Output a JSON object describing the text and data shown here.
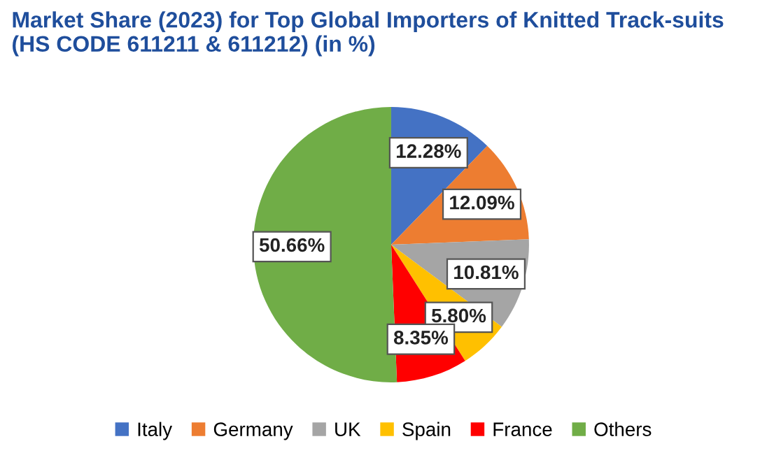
{
  "chart_data": {
    "type": "pie",
    "title": "Market Share (2023) for Top Global Importers of Knitted Track-suits\n(HS CODE 611211 & 611212) (in %)",
    "categories": [
      "Italy",
      "Germany",
      "UK",
      "Spain",
      "France",
      "Others"
    ],
    "values": [
      12.28,
      12.09,
      10.81,
      5.8,
      8.35,
      50.66
    ],
    "value_labels": [
      "12.28%",
      "12.09%",
      "10.81%",
      "5.80%",
      "8.35%",
      "50.66%"
    ],
    "colors": [
      "#4472c4",
      "#ed7d31",
      "#a5a5a5",
      "#ffc000",
      "#ff0000",
      "#70ad47"
    ],
    "legend": "bottom"
  }
}
